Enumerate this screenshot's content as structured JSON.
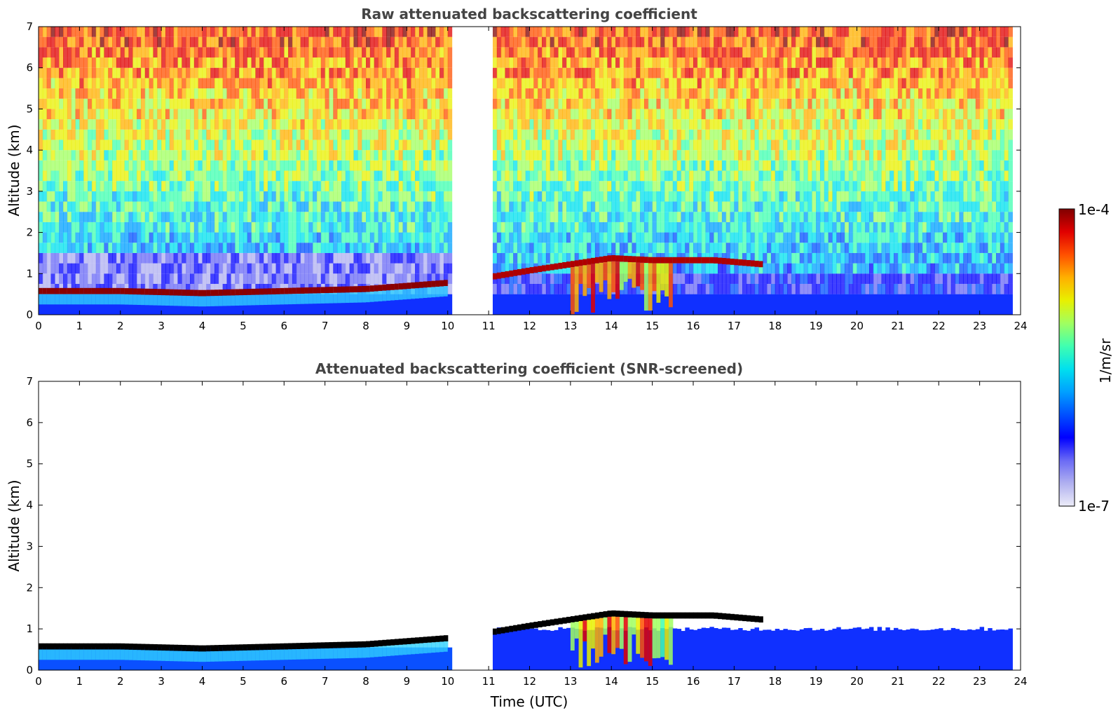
{
  "chart_data": [
    {
      "type": "heatmap",
      "title": "Raw attenuated backscattering coefficient",
      "xlabel": "",
      "ylabel": "Altitude (km)",
      "xlim": [
        0,
        24
      ],
      "ylim": [
        0,
        7
      ],
      "xticks": [
        "0",
        "1",
        "2",
        "3",
        "4",
        "5",
        "6",
        "7",
        "8",
        "9",
        "10",
        "11",
        "12",
        "13",
        "14",
        "15",
        "16",
        "17",
        "18",
        "19",
        "20",
        "21",
        "22",
        "23",
        "24"
      ],
      "yticks": [
        "0",
        "1",
        "2",
        "3",
        "4",
        "5",
        "6",
        "7"
      ],
      "data_gaps_hours": [
        [
          10.05,
          11.1
        ],
        [
          23.8,
          24
        ]
      ],
      "features": [
        {
          "description_values": "boundary-layer cloud base altitude (km) vs time (h)",
          "x": [
            0,
            2,
            4,
            6,
            8,
            10
          ],
          "y": [
            0.55,
            0.55,
            0.5,
            0.55,
            0.6,
            0.75
          ]
        },
        {
          "description_values": "afternoon cloud layer altitude (km) vs time (h)",
          "x": [
            11.1,
            12,
            13,
            14,
            15,
            16.5,
            17.7
          ],
          "y": [
            0.9,
            1.05,
            1.2,
            1.35,
            1.3,
            1.3,
            1.2
          ]
        }
      ]
    },
    {
      "type": "heatmap",
      "title": "Attenuated backscattering coefficient (SNR-screened)",
      "xlabel": "Time (UTC)",
      "ylabel": "Altitude (km)",
      "xlim": [
        0,
        24
      ],
      "ylim": [
        0,
        7
      ],
      "xticks": [
        "0",
        "1",
        "2",
        "3",
        "4",
        "5",
        "6",
        "7",
        "8",
        "9",
        "10",
        "11",
        "12",
        "13",
        "14",
        "15",
        "16",
        "17",
        "18",
        "19",
        "20",
        "21",
        "22",
        "23",
        "24"
      ],
      "yticks": [
        "0",
        "1",
        "2",
        "3",
        "4",
        "5",
        "6",
        "7"
      ],
      "data_gaps_hours": [
        [
          10.05,
          11.1
        ],
        [
          23.8,
          24
        ]
      ]
    }
  ],
  "colorbar": {
    "label": "1/m/sr",
    "max_label": "1e-4",
    "min_label": "1e-7",
    "scale": "log",
    "colors": [
      "#ececf8",
      "#b0b0f0",
      "#6a6af5",
      "#0000ff",
      "#0050ff",
      "#00a0ff",
      "#00e0ee",
      "#40ffb0",
      "#a0ff60",
      "#e8f000",
      "#ffb000",
      "#ff5000",
      "#e00000",
      "#800000"
    ]
  },
  "colors": {
    "sky_low": "#f4f4ff",
    "near_surface": "#1030ff",
    "cloud_core": "#8b0000",
    "screened_edge": "#000000"
  }
}
